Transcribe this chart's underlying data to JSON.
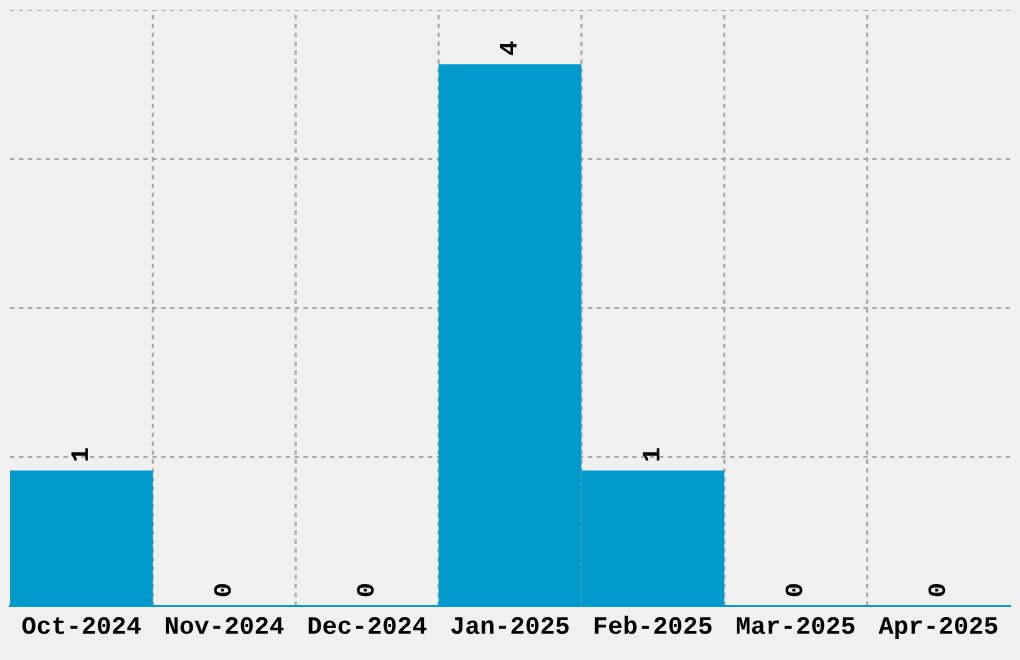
{
  "chart_data": {
    "type": "bar",
    "categories": [
      "Oct-2024",
      "Nov-2024",
      "Dec-2024",
      "Jan-2025",
      "Feb-2025",
      "Mar-2025",
      "Apr-2025"
    ],
    "values": [
      1,
      0,
      0,
      4,
      1,
      0,
      0
    ],
    "color": "#0099cc",
    "ylim": [
      0,
      4.4
    ],
    "yticks": [
      {
        "value": 1.1,
        "label": null
      },
      {
        "value": 2.2,
        "label": null
      },
      {
        "value": 3.3,
        "label": null
      },
      {
        "value": 4.4,
        "label": null
      }
    ],
    "tick_labels": "x",
    "data_labels": true,
    "grid": true
  }
}
